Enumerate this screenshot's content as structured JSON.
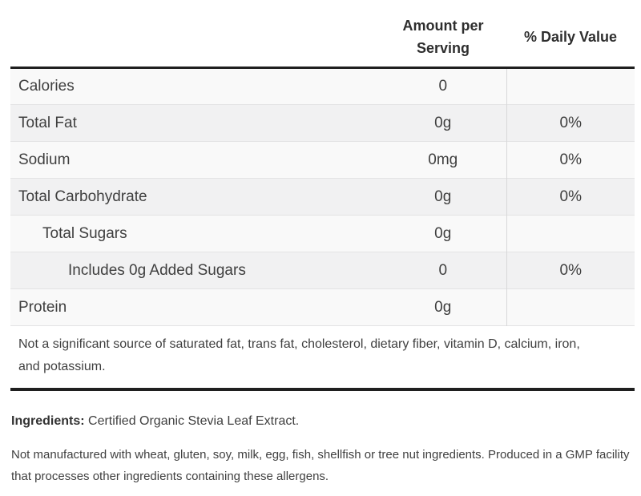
{
  "colors": {
    "thick_rule": "#1f1f1f",
    "row_separator": "#e3e3e4",
    "column_divider": "#d8d8d9",
    "row_bg_light": "#f9f9f9",
    "row_bg_dark": "#f1f1f2",
    "text": "#3f3f3f"
  },
  "nutrition_panel": {
    "header": {
      "nutrient_column": "",
      "amount_column": "Amount per Serving",
      "daily_value_column": "% Daily Value"
    },
    "rows": [
      {
        "label": "Calories",
        "amount": "0",
        "daily_value": "",
        "indent": 0
      },
      {
        "label": "Total Fat",
        "amount": "0g",
        "daily_value": "0%",
        "indent": 0
      },
      {
        "label": "Sodium",
        "amount": "0mg",
        "daily_value": "0%",
        "indent": 0
      },
      {
        "label": "Total Carbohydrate",
        "amount": "0g",
        "daily_value": "0%",
        "indent": 0
      },
      {
        "label": "Total Sugars",
        "amount": "0g",
        "daily_value": "",
        "indent": 1
      },
      {
        "label": "Includes 0g Added Sugars",
        "amount": "0",
        "daily_value": "0%",
        "indent": 2
      },
      {
        "label": "Protein",
        "amount": "0g",
        "daily_value": "",
        "indent": 0
      }
    ],
    "footnote": "Not a significant source of saturated fat, trans fat, cholesterol, dietary fiber, vitamin D, calcium, iron, and potassium."
  },
  "ingredients": {
    "label": "Ingredients:",
    "text": " Certified Organic Stevia Leaf Extract."
  },
  "allergen_statement": "Not manufactured with wheat, gluten, soy, milk, egg, fish, shellfish or tree nut ingredients. Produced in a GMP facility that processes other ingredients containing these allergens."
}
